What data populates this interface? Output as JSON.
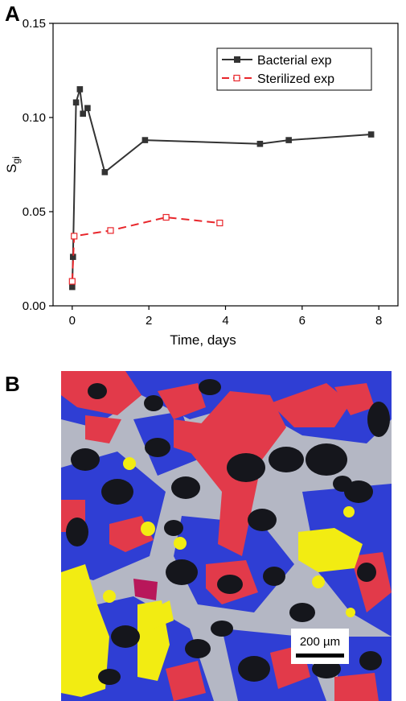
{
  "panels": {
    "a_label": "A",
    "b_label": "B"
  },
  "chart_data": {
    "type": "line",
    "title": "",
    "xlabel": "Time, days",
    "ylabel_main": "S",
    "ylabel_sub": "gi",
    "xlim": [
      -0.5,
      8.5
    ],
    "ylim": [
      0,
      0.15
    ],
    "xticks": [
      0,
      2,
      4,
      6,
      8
    ],
    "xtick_labels": [
      "0",
      "2",
      "4",
      "6",
      "8"
    ],
    "yticks": [
      0,
      0.05,
      0.1,
      0.15
    ],
    "ytick_labels": [
      "0.00",
      "0.05",
      "0.10",
      "0.15"
    ],
    "grid": false,
    "legend_position": "top-right",
    "series": [
      {
        "name": "Bacterial exp",
        "color": "#333333",
        "marker": "filled-square",
        "line": "solid",
        "x": [
          0,
          0.02,
          0.1,
          0.2,
          0.28,
          0.4,
          0.85,
          1.9,
          4.9,
          5.65,
          7.8
        ],
        "y": [
          0.01,
          0.026,
          0.108,
          0.115,
          0.102,
          0.105,
          0.071,
          0.088,
          0.086,
          0.088,
          0.091
        ]
      },
      {
        "name": "Sterilized exp",
        "color": "#e8262b",
        "marker": "open-square",
        "line": "dashed",
        "x": [
          0,
          0.05,
          1.0,
          2.45,
          3.85
        ],
        "y": [
          0.013,
          0.037,
          0.04,
          0.047,
          0.044
        ]
      }
    ]
  },
  "micrograph": {
    "scale_bar_label": "200 µm",
    "colors": {
      "grain": "#15161c",
      "matrix": "#b4b7c4",
      "blue_phase": "#2f3ed4",
      "red_phase": "#e23a4a",
      "yellow_phase": "#f2ec12",
      "crimson_phase": "#b8175a"
    }
  }
}
